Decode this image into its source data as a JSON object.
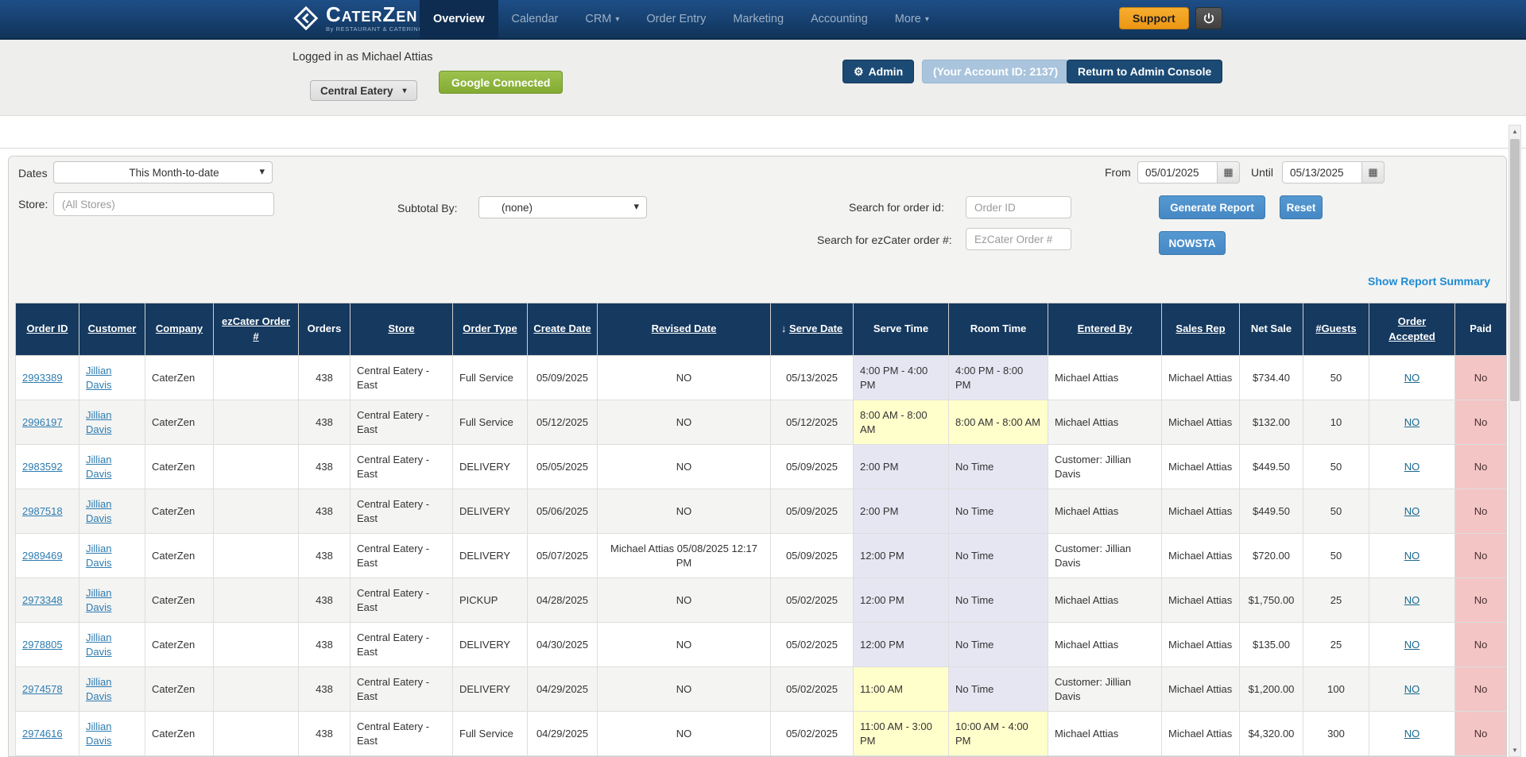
{
  "navbar": {
    "brand": "CaterZen",
    "tagline": "By RESTAURANT & CATERING SYSTEMS",
    "items": [
      {
        "label": "Overview",
        "active": true,
        "caret": false
      },
      {
        "label": "Calendar",
        "active": false,
        "caret": false
      },
      {
        "label": "CRM",
        "active": false,
        "caret": true
      },
      {
        "label": "Order Entry",
        "active": false,
        "caret": false
      },
      {
        "label": "Marketing",
        "active": false,
        "caret": false
      },
      {
        "label": "Accounting",
        "active": false,
        "caret": false
      },
      {
        "label": "More",
        "active": false,
        "caret": true
      }
    ],
    "support_label": "Support",
    "power_icon": "power-icon"
  },
  "subheader": {
    "logged_in": "Logged in as Michael Attias",
    "store_button": "Central Eatery",
    "google_button": "Google Connected",
    "admin_button": "Admin",
    "account_id_button": "(Your Account ID: 2137)",
    "return_button": "Return to Admin Console"
  },
  "filters": {
    "dates_label": "Dates",
    "dates_value": "This Month-to-date",
    "store_label": "Store:",
    "store_placeholder": "(All Stores)",
    "subtotal_label": "Subtotal By:",
    "subtotal_value": "(none)",
    "from_label": "From",
    "from_value": "05/01/2025",
    "until_label": "Until",
    "until_value": "05/13/2025",
    "search_order_label": "Search for order id:",
    "search_order_placeholder": "Order ID",
    "search_ez_label": "Search for ezCater order #:",
    "search_ez_placeholder": "EzCater Order #",
    "generate_label": "Generate Report",
    "reset_label": "Reset",
    "nowsta_label": "NOWSTA",
    "show_summary": "Show Report Summary"
  },
  "table": {
    "headers": [
      {
        "label": "Order ID",
        "underlined": true,
        "sort_arrow": ""
      },
      {
        "label": "Customer",
        "underlined": true,
        "sort_arrow": ""
      },
      {
        "label": "Company",
        "underlined": true,
        "sort_arrow": ""
      },
      {
        "label": "ezCater Order #",
        "underlined": true,
        "sort_arrow": ""
      },
      {
        "label": "Orders",
        "underlined": false,
        "sort_arrow": ""
      },
      {
        "label": "Store",
        "underlined": true,
        "sort_arrow": ""
      },
      {
        "label": "Order Type",
        "underlined": true,
        "sort_arrow": ""
      },
      {
        "label": "Create Date",
        "underlined": true,
        "sort_arrow": ""
      },
      {
        "label": "Revised Date",
        "underlined": true,
        "sort_arrow": ""
      },
      {
        "label": "Serve Date",
        "underlined": true,
        "sort_arrow": "↓"
      },
      {
        "label": "Serve Time",
        "underlined": false,
        "sort_arrow": ""
      },
      {
        "label": "Room Time",
        "underlined": false,
        "sort_arrow": ""
      },
      {
        "label": "Entered By",
        "underlined": true,
        "sort_arrow": ""
      },
      {
        "label": "Sales Rep",
        "underlined": true,
        "sort_arrow": ""
      },
      {
        "label": "Net Sale",
        "underlined": false,
        "sort_arrow": ""
      },
      {
        "label": "#Guests",
        "underlined": true,
        "sort_arrow": ""
      },
      {
        "label": "Order Accepted",
        "underlined": true,
        "sort_arrow": ""
      },
      {
        "label": "Paid",
        "underlined": false,
        "sort_arrow": ""
      }
    ],
    "rows": [
      {
        "id": "2993389",
        "customer": "Jillian Davis",
        "company": "CaterZen",
        "ezcater": "",
        "orders": "438",
        "store": "Central Eatery - East",
        "type": "Full Service",
        "create": "05/09/2025",
        "revised": "NO",
        "serve_date": "05/13/2025",
        "serve_time": "4:00 PM - 4:00 PM",
        "serve_time_bg": "lav",
        "room_time": "4:00 PM - 8:00 PM",
        "room_time_bg": "lav",
        "entered": "Michael Attias",
        "rep": "Michael Attias",
        "net": "$734.40",
        "guests": "50",
        "accepted": "NO",
        "paid": "No"
      },
      {
        "id": "2996197",
        "customer": "Jillian Davis",
        "company": "CaterZen",
        "ezcater": "",
        "orders": "438",
        "store": "Central Eatery - East",
        "type": "Full Service",
        "create": "05/12/2025",
        "revised": "NO",
        "serve_date": "05/12/2025",
        "serve_time": "8:00 AM - 8:00 AM",
        "serve_time_bg": "yel",
        "room_time": "8:00 AM - 8:00 AM",
        "room_time_bg": "yel",
        "entered": "Michael Attias",
        "rep": "Michael Attias",
        "net": "$132.00",
        "guests": "10",
        "accepted": "NO",
        "paid": "No"
      },
      {
        "id": "2983592",
        "customer": "Jillian Davis",
        "company": "CaterZen",
        "ezcater": "",
        "orders": "438",
        "store": "Central Eatery - East",
        "type": "DELIVERY",
        "create": "05/05/2025",
        "revised": "NO",
        "serve_date": "05/09/2025",
        "serve_time": "2:00 PM",
        "serve_time_bg": "lav",
        "room_time": "No Time",
        "room_time_bg": "lav",
        "entered": "Customer: Jillian Davis",
        "rep": "Michael Attias",
        "net": "$449.50",
        "guests": "50",
        "accepted": "NO",
        "paid": "No"
      },
      {
        "id": "2987518",
        "customer": "Jillian Davis",
        "company": "CaterZen",
        "ezcater": "",
        "orders": "438",
        "store": "Central Eatery - East",
        "type": "DELIVERY",
        "create": "05/06/2025",
        "revised": "NO",
        "serve_date": "05/09/2025",
        "serve_time": "2:00 PM",
        "serve_time_bg": "lav",
        "room_time": "No Time",
        "room_time_bg": "lav",
        "entered": "Michael Attias",
        "rep": "Michael Attias",
        "net": "$449.50",
        "guests": "50",
        "accepted": "NO",
        "paid": "No"
      },
      {
        "id": "2989469",
        "customer": "Jillian Davis",
        "company": "CaterZen",
        "ezcater": "",
        "orders": "438",
        "store": "Central Eatery - East",
        "type": "DELIVERY",
        "create": "05/07/2025",
        "revised": "Michael Attias 05/08/2025 12:17 PM",
        "serve_date": "05/09/2025",
        "serve_time": "12:00 PM",
        "serve_time_bg": "lav",
        "room_time": "No Time",
        "room_time_bg": "lav",
        "entered": "Customer: Jillian Davis",
        "rep": "Michael Attias",
        "net": "$720.00",
        "guests": "50",
        "accepted": "NO",
        "paid": "No"
      },
      {
        "id": "2973348",
        "customer": "Jillian Davis",
        "company": "CaterZen",
        "ezcater": "",
        "orders": "438",
        "store": "Central Eatery - East",
        "type": "PICKUP",
        "create": "04/28/2025",
        "revised": "NO",
        "serve_date": "05/02/2025",
        "serve_time": "12:00 PM",
        "serve_time_bg": "lav",
        "room_time": "No Time",
        "room_time_bg": "lav",
        "entered": "Michael Attias",
        "rep": "Michael Attias",
        "net": "$1,750.00",
        "guests": "25",
        "accepted": "NO",
        "paid": "No"
      },
      {
        "id": "2978805",
        "customer": "Jillian Davis",
        "company": "CaterZen",
        "ezcater": "",
        "orders": "438",
        "store": "Central Eatery - East",
        "type": "DELIVERY",
        "create": "04/30/2025",
        "revised": "NO",
        "serve_date": "05/02/2025",
        "serve_time": "12:00 PM",
        "serve_time_bg": "lav",
        "room_time": "No Time",
        "room_time_bg": "lav",
        "entered": "Michael Attias",
        "rep": "Michael Attias",
        "net": "$135.00",
        "guests": "25",
        "accepted": "NO",
        "paid": "No"
      },
      {
        "id": "2974578",
        "customer": "Jillian Davis",
        "company": "CaterZen",
        "ezcater": "",
        "orders": "438",
        "store": "Central Eatery - East",
        "type": "DELIVERY",
        "create": "04/29/2025",
        "revised": "NO",
        "serve_date": "05/02/2025",
        "serve_time": "11:00 AM",
        "serve_time_bg": "yel",
        "room_time": "No Time",
        "room_time_bg": "lav",
        "entered": "Customer: Jillian Davis",
        "rep": "Michael Attias",
        "net": "$1,200.00",
        "guests": "100",
        "accepted": "NO",
        "paid": "No"
      },
      {
        "id": "2974616",
        "customer": "Jillian Davis",
        "company": "CaterZen",
        "ezcater": "",
        "orders": "438",
        "store": "Central Eatery - East",
        "type": "Full Service",
        "create": "04/29/2025",
        "revised": "NO",
        "serve_date": "05/02/2025",
        "serve_time": "11:00 AM - 3:00 PM",
        "serve_time_bg": "yel",
        "room_time": "10:00 AM - 4:00 PM",
        "room_time_bg": "yel",
        "entered": "Michael Attias",
        "rep": "Michael Attias",
        "net": "$4,320.00",
        "guests": "300",
        "accepted": "NO",
        "paid": "No"
      }
    ]
  },
  "colors": {
    "navbar_navy": "#16406f",
    "table_header_navy": "#15395f",
    "action_blue": "#4a8fc9",
    "support_orange": "#f0a11e",
    "google_green": "#8cb63e",
    "serve_time_lavender": "#e6e6f3",
    "serve_time_yellow": "#ffffcc",
    "paid_pink": "#f3c5c5",
    "link_blue": "#2e7cb0",
    "summary_link_blue": "#1f8bd4"
  }
}
